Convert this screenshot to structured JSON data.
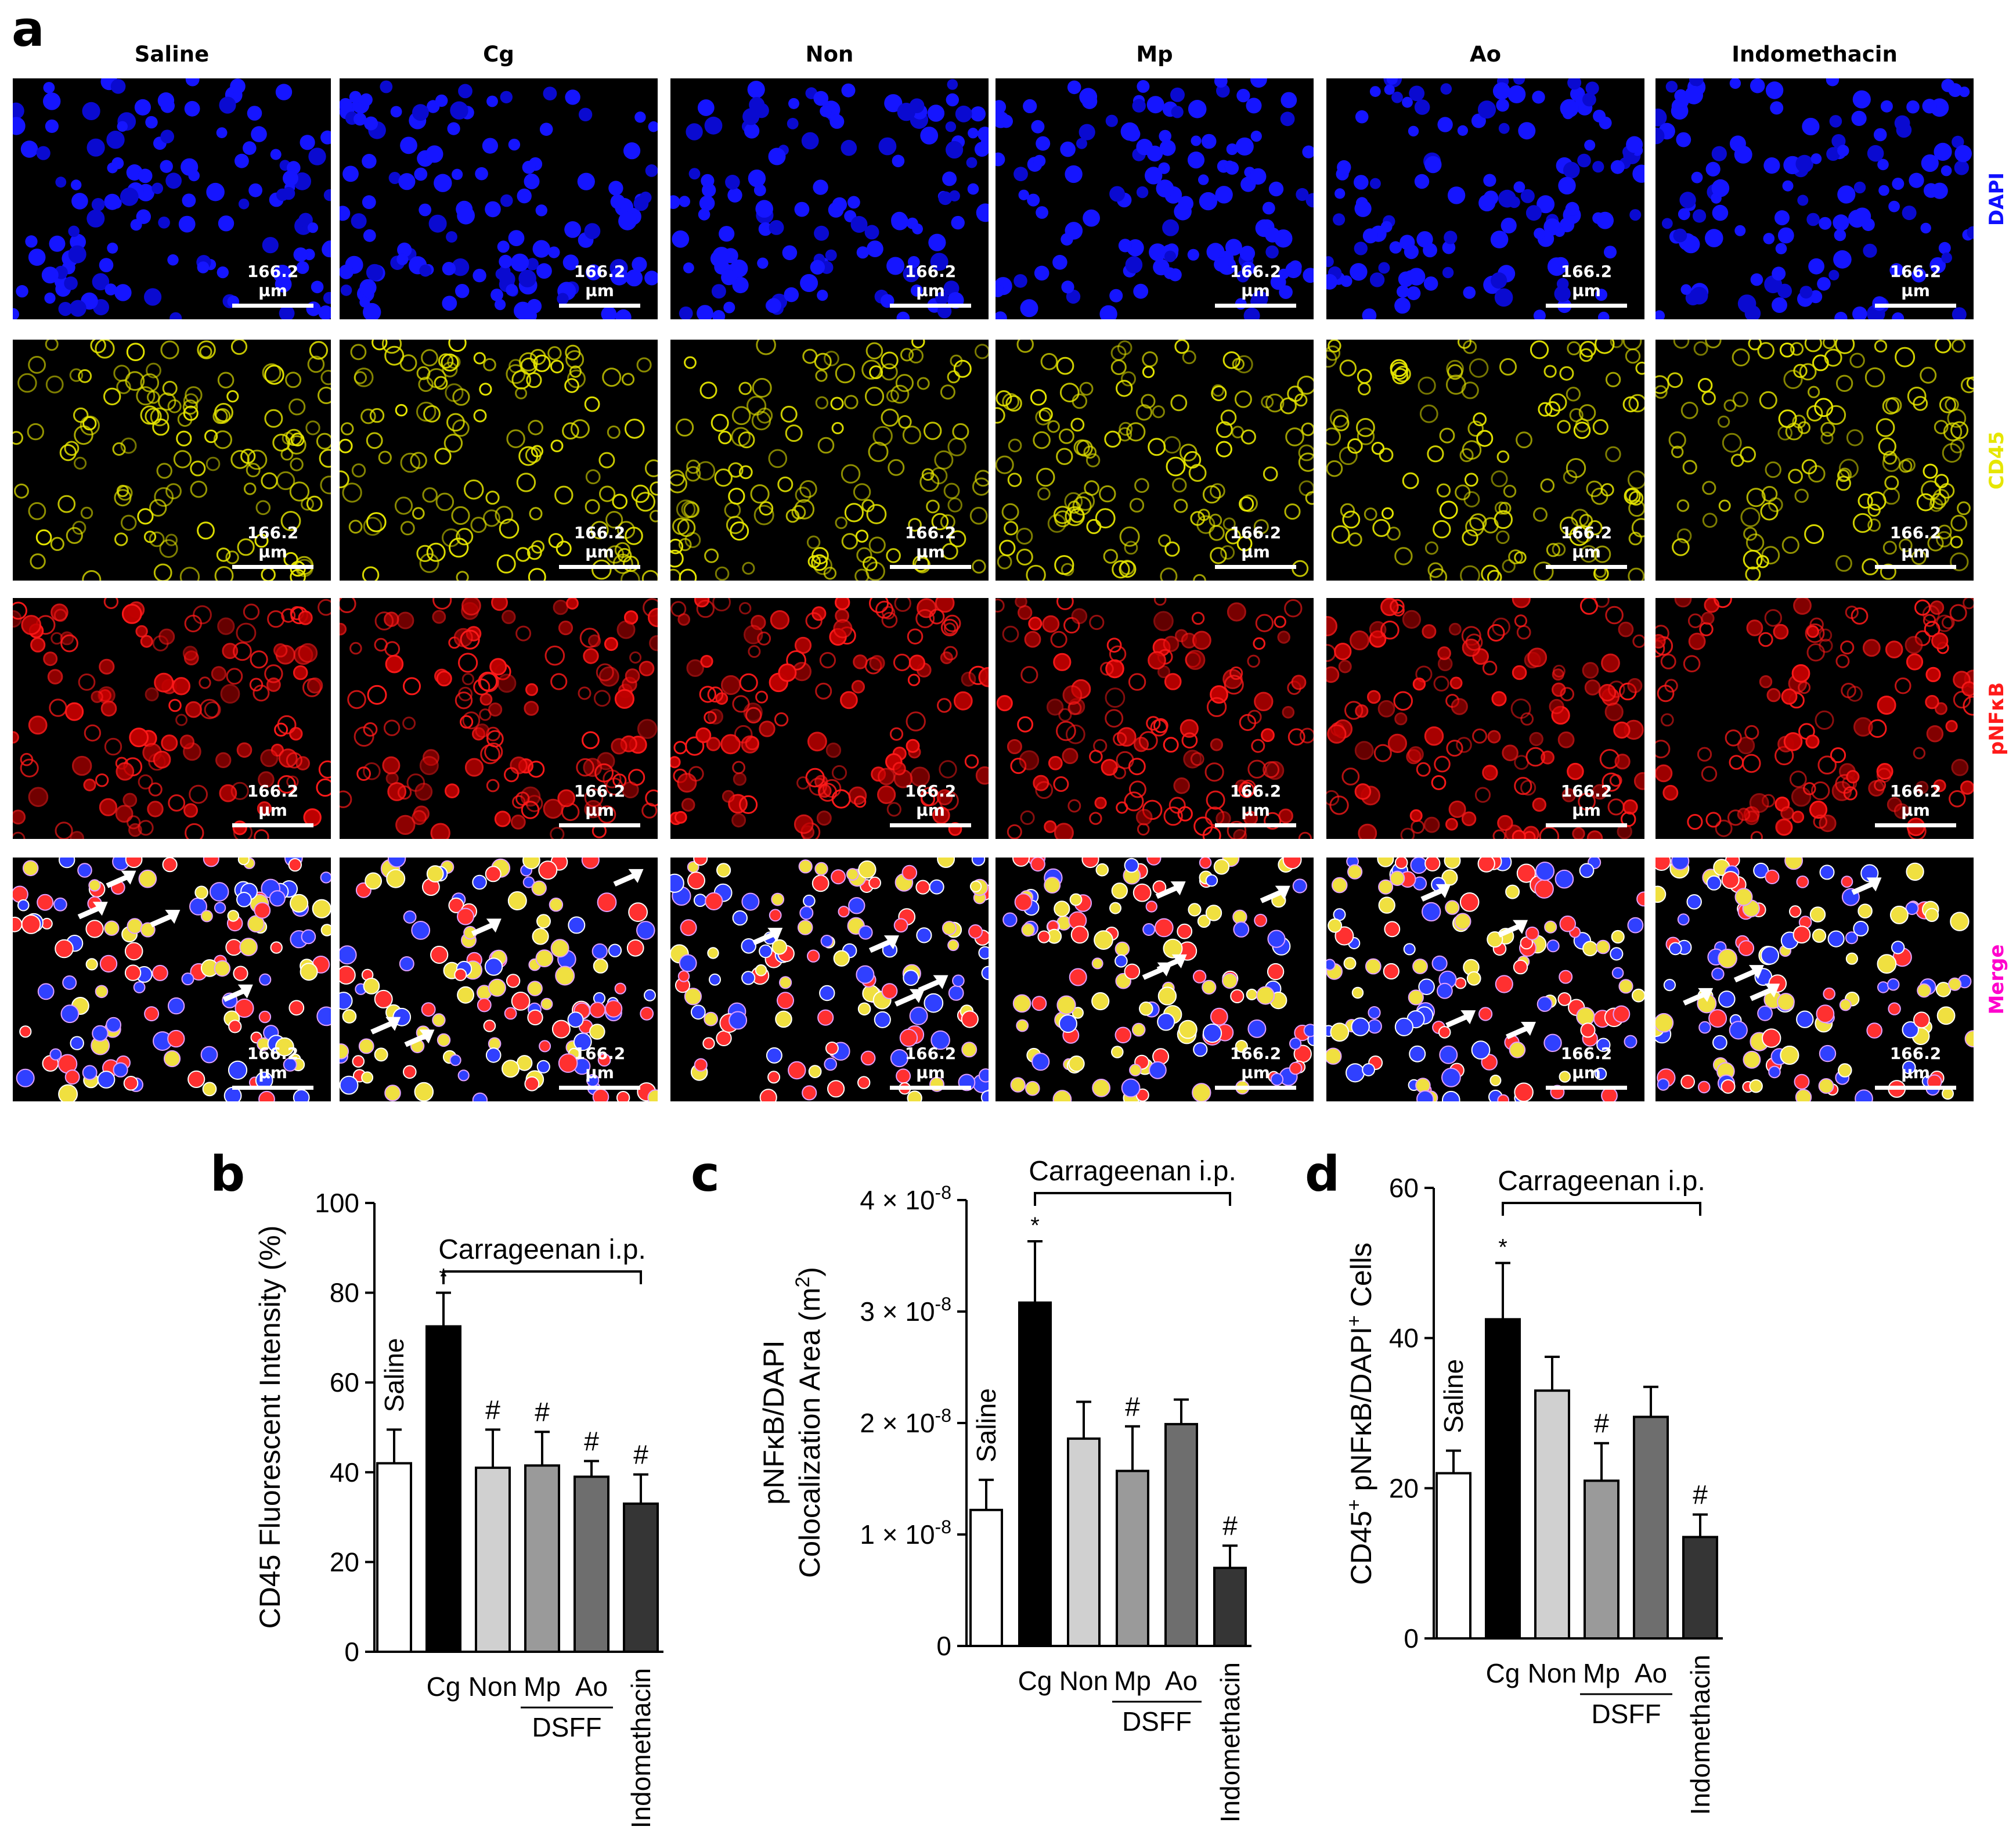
{
  "figure": {
    "panel_letters": {
      "a": "a",
      "b": "b",
      "c": "c",
      "d": "d"
    },
    "columns": [
      "Saline",
      "Cg",
      "Non",
      "Mp",
      "Ao",
      "Indomethacin"
    ],
    "rows": [
      {
        "label": "DAPI",
        "color": "#1010ff"
      },
      {
        "label": "CD45",
        "color": "#e6e600"
      },
      {
        "label": "pNFκB",
        "color": "#ff1a1a"
      },
      {
        "label": "Merge",
        "color": "#ff00cc"
      }
    ],
    "scale_bar": "166.2 μm"
  },
  "chart_data": [
    {
      "type": "bar",
      "panel": "b",
      "ylabel": "CD45 Fluorescent Intensity (%)",
      "ylim": [
        0,
        100
      ],
      "yticks": [
        "0",
        "20",
        "40",
        "60",
        "80",
        "100"
      ],
      "bracket_label": "Carrageenan i.p.",
      "group_label": "DSFF",
      "categories": [
        "Saline",
        "Cg",
        "Non",
        "Mp",
        "Ao",
        "Indomethacin"
      ],
      "values": [
        42,
        72.5,
        41,
        41.5,
        39,
        33
      ],
      "errors": [
        7.5,
        7.5,
        8.5,
        7.5,
        3.5,
        6.5
      ],
      "annotations": [
        "",
        "*",
        "#",
        "#",
        "#",
        "#"
      ],
      "colors": [
        "#ffffff",
        "#000000",
        "#d0d0d0",
        "#9a9a9a",
        "#6e6e6e",
        "#353535"
      ]
    },
    {
      "type": "bar",
      "panel": "c",
      "ylabel_line1": "pNFκB/DAPI",
      "ylabel_line2": "Colocalization Area (m",
      "ylabel_sup": "2",
      "ylabel_end": ")",
      "ylim": [
        0,
        4e-08
      ],
      "yticks": [
        {
          "base": "0",
          "exp": ""
        },
        {
          "base": "1 × 10",
          "exp": "-8"
        },
        {
          "base": "2 × 10",
          "exp": "-8"
        },
        {
          "base": "3 × 10",
          "exp": "-8"
        },
        {
          "base": "4 × 10",
          "exp": "-8"
        }
      ],
      "bracket_label": "Carrageenan i.p.",
      "group_label": "DSFF",
      "categories": [
        "Saline",
        "Cg",
        "Non",
        "Mp",
        "Ao",
        "Indomethacin"
      ],
      "values": [
        1.22e-08,
        3.08e-08,
        1.86e-08,
        1.57e-08,
        1.99e-08,
        7e-09
      ],
      "errors": [
        2.7e-09,
        5.5e-09,
        3.3e-09,
        4e-09,
        2.2e-09,
        2e-09
      ],
      "annotations": [
        "",
        "*",
        "",
        "#",
        "",
        "#"
      ],
      "colors": [
        "#ffffff",
        "#000000",
        "#d0d0d0",
        "#9a9a9a",
        "#6e6e6e",
        "#353535"
      ]
    },
    {
      "type": "bar",
      "panel": "d",
      "ylabel_parts": [
        "CD45",
        "+",
        " pNFκB/DAPI",
        "+",
        " Cells"
      ],
      "ylim": [
        0,
        60
      ],
      "yticks": [
        "0",
        "20",
        "40",
        "60"
      ],
      "bracket_label": "Carrageenan i.p.",
      "group_label": "DSFF",
      "categories": [
        "Saline",
        "Cg",
        "Non",
        "Mp",
        "Ao",
        "Indomethacin"
      ],
      "values": [
        22,
        42.5,
        33,
        21,
        29.5,
        13.5
      ],
      "errors": [
        3,
        7.5,
        4.5,
        5,
        4,
        3
      ],
      "annotations": [
        "",
        "*",
        "",
        "#",
        "",
        "#"
      ],
      "colors": [
        "#ffffff",
        "#000000",
        "#d0d0d0",
        "#9a9a9a",
        "#6e6e6e",
        "#353535"
      ]
    }
  ]
}
